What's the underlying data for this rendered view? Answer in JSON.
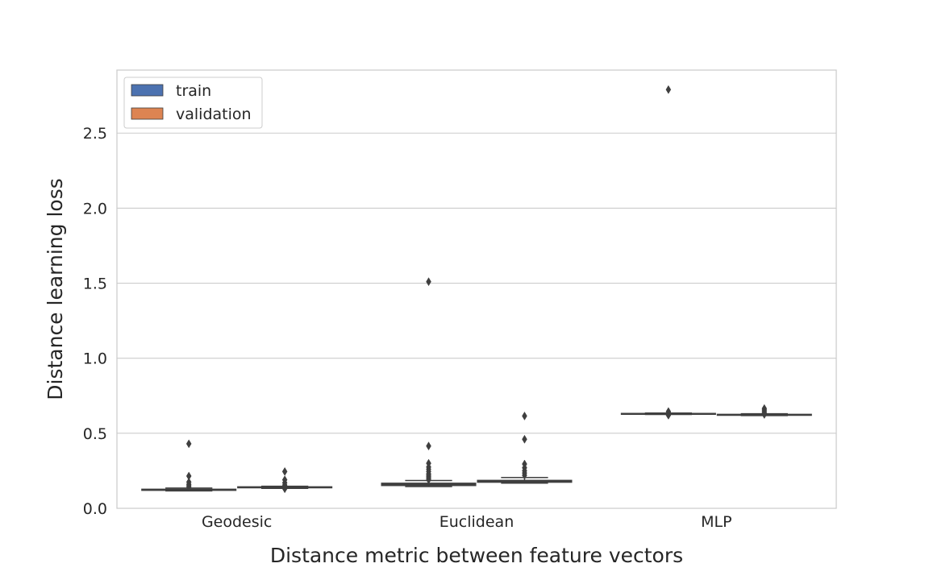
{
  "chart_data": {
    "type": "box",
    "title": "",
    "xlabel": "Distance metric between feature vectors",
    "ylabel": "Distance learning loss",
    "ylim": [
      0,
      2.92
    ],
    "yticks": [
      "0.0",
      "0.5",
      "1.0",
      "1.5",
      "2.0",
      "2.5"
    ],
    "grid": "horizontal",
    "legend": {
      "placement": "top-left"
    },
    "categories": [
      "Geodesic",
      "Euclidean",
      "MLP"
    ],
    "series": [
      {
        "name": "train",
        "color": "#4c72b0",
        "boxes": [
          {
            "q1": 0.12,
            "median": 0.123,
            "q3": 0.127,
            "whisker_low": 0.116,
            "whisker_high": 0.135,
            "outliers": [
              0.43,
              0.215,
              0.175,
              0.16,
              0.15,
              0.14
            ]
          },
          {
            "q1": 0.152,
            "median": 0.16,
            "q3": 0.167,
            "whisker_low": 0.145,
            "whisker_high": 0.185,
            "outliers": [
              1.51,
              0.415,
              0.3,
              0.275,
              0.26,
              0.245,
              0.23,
              0.22,
              0.21,
              0.2,
              0.19
            ]
          },
          {
            "q1": 0.627,
            "median": 0.63,
            "q3": 0.632,
            "whisker_low": 0.625,
            "whisker_high": 0.635,
            "outliers": [
              2.79,
              0.645,
              0.638,
              0.62
            ]
          }
        ]
      },
      {
        "name": "validation",
        "color": "#dd8452",
        "boxes": [
          {
            "q1": 0.137,
            "median": 0.14,
            "q3": 0.143,
            "whisker_low": 0.133,
            "whisker_high": 0.147,
            "outliers": [
              0.245,
              0.19,
              0.17,
              0.155,
              0.145,
              0.13
            ]
          },
          {
            "q1": 0.174,
            "median": 0.18,
            "q3": 0.186,
            "whisker_low": 0.168,
            "whisker_high": 0.205,
            "outliers": [
              0.615,
              0.46,
              0.295,
              0.27,
              0.25,
              0.235,
              0.22
            ]
          },
          {
            "q1": 0.62,
            "median": 0.623,
            "q3": 0.626,
            "whisker_low": 0.618,
            "whisker_high": 0.63,
            "outliers": [
              0.665,
              0.655,
              0.645,
              0.635,
              0.625
            ]
          }
        ]
      }
    ]
  }
}
